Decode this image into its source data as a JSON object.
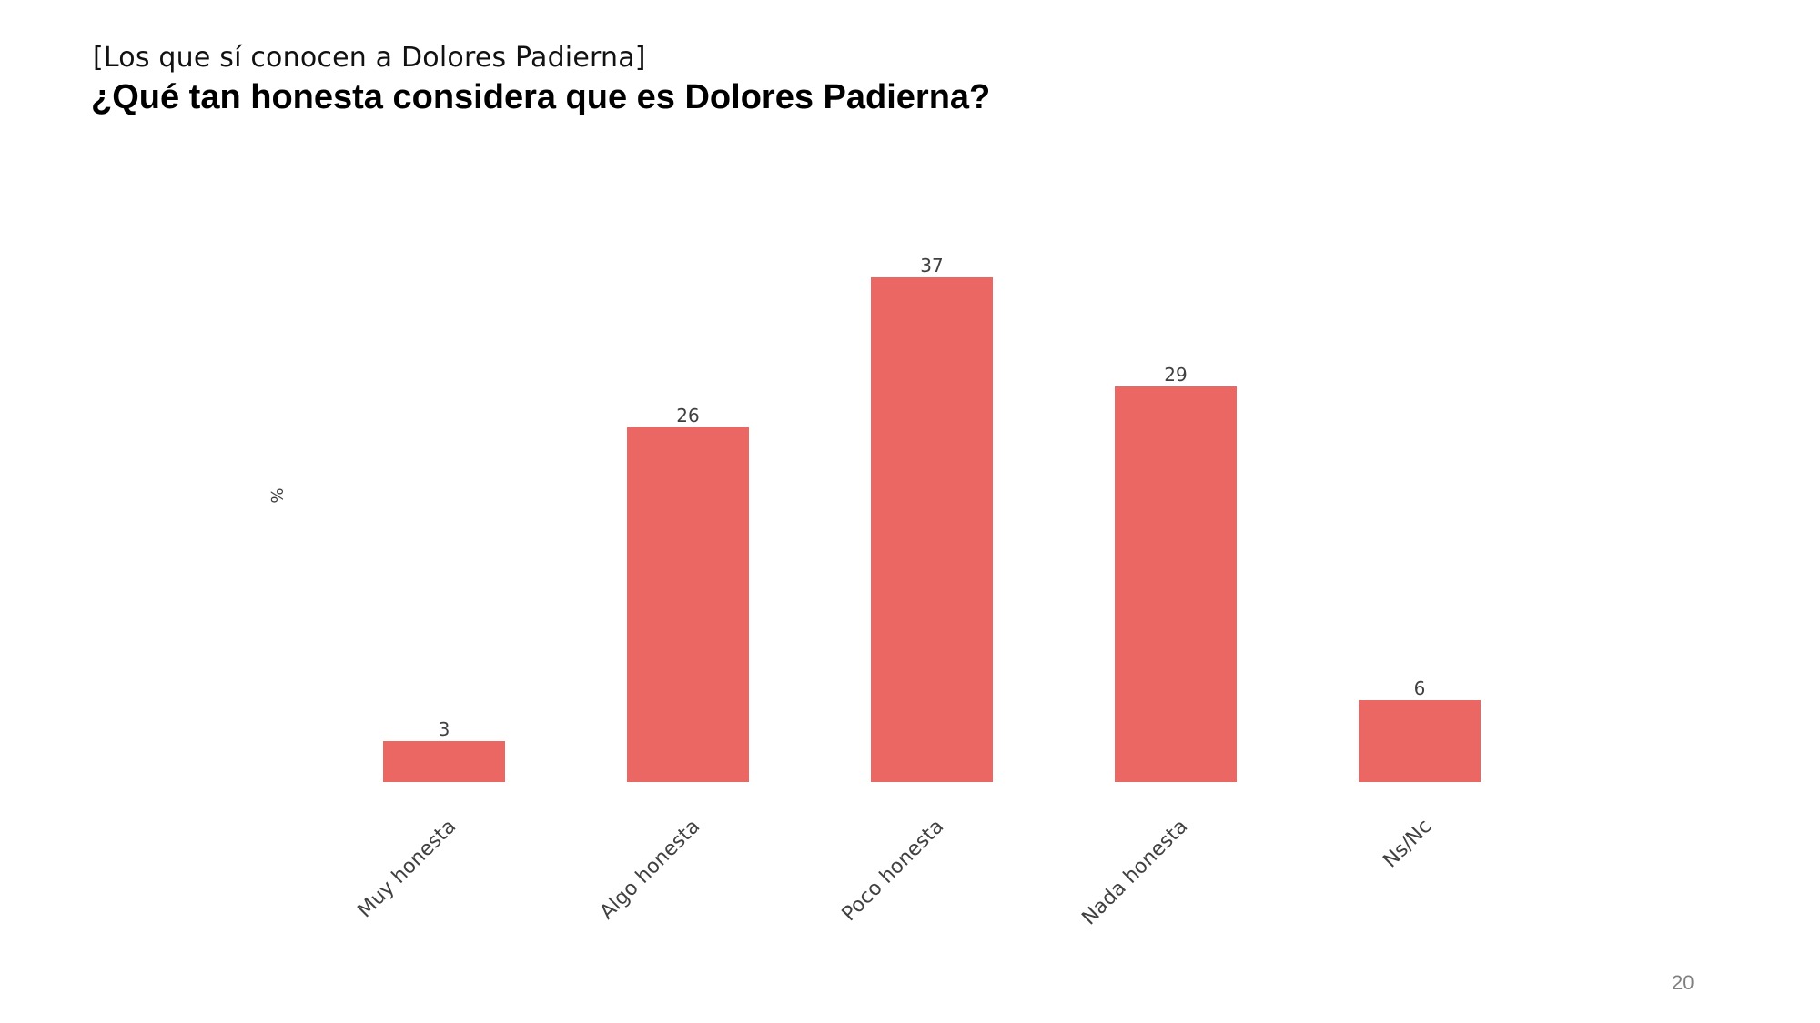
{
  "header": {
    "subtitle": "[Los que sí conocen a Dolores Padierna]",
    "title": "¿Qué tan honesta considera que es Dolores Padierna?"
  },
  "footer": {
    "page_number": "20"
  },
  "chart_data": {
    "type": "bar",
    "categories": [
      "Muy honesta",
      "Algo honesta",
      "Poco honesta",
      "Nada honesta",
      "Ns/Nc"
    ],
    "values": [
      3,
      26,
      37,
      29,
      6
    ],
    "xlabel": "",
    "ylabel": "%",
    "ylim": [
      0,
      40
    ],
    "bar_color": "#eb6763",
    "grid": false,
    "legend": "none",
    "data_labels": true
  }
}
